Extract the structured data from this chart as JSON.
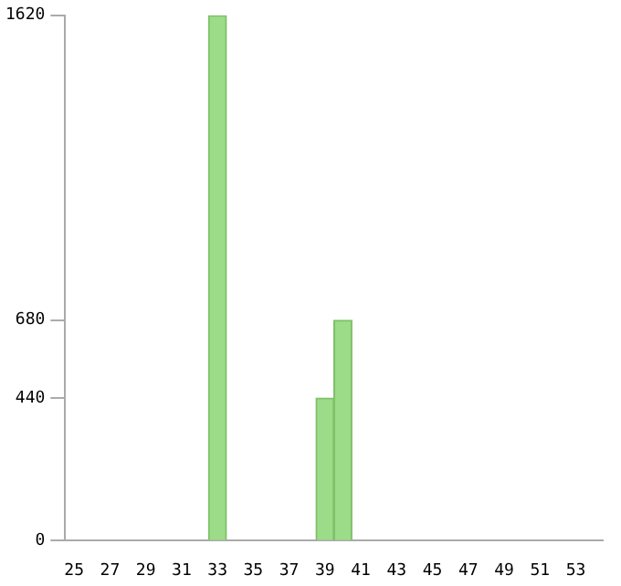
{
  "chart_data": {
    "type": "bar",
    "categories": [
      "25",
      null,
      "27",
      null,
      "29",
      null,
      "31",
      null,
      "33",
      null,
      "35",
      null,
      "37",
      null,
      "39",
      null,
      "41",
      null,
      "43",
      null,
      "45",
      null,
      "47",
      null,
      "49",
      null,
      "51",
      null,
      "53",
      null
    ],
    "values": [
      0,
      0,
      0,
      0,
      0,
      0,
      0,
      0,
      1620,
      0,
      0,
      0,
      0,
      0,
      440,
      680,
      0,
      0,
      0,
      0,
      0,
      0,
      0,
      0,
      0,
      0,
      0,
      0,
      0,
      0
    ],
    "color": "#9cdc88",
    "ylim": [
      0,
      1620
    ],
    "yticks": [
      0,
      440,
      680,
      1620
    ],
    "grid": false,
    "legend": false
  }
}
